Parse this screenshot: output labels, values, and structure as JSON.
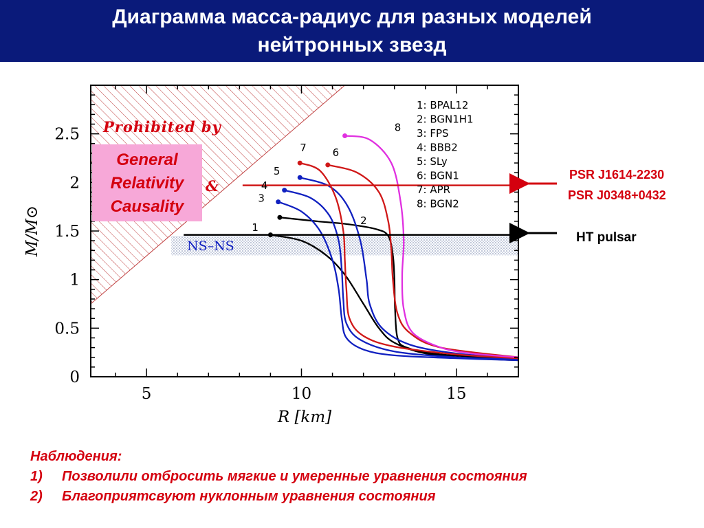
{
  "header": {
    "title_line1": "Диаграмма масса-радиус для разных моделей",
    "title_line2": "нейтронных звезд",
    "bg_color": "#0a1a7a"
  },
  "annotations": {
    "prohibited": "Prohibited by",
    "gr_line1": "General",
    "gr_line2": "Relativity",
    "gr_amp": "&",
    "gr_line3": "Causality",
    "ns_ns": "NS–NS",
    "psr1": "PSR J1614-2230",
    "psr2": "PSR J0348+0432",
    "ht_pulsar": "HT pulsar"
  },
  "observations": {
    "heading": "Наблюдения:",
    "items": [
      {
        "num": "1)",
        "text": "Позволили отбросить мягкие и умеренные уравнения состояния"
      },
      {
        "num": "2)",
        "text": "Благоприятсвуют нуклонным уравнения состояния"
      }
    ]
  },
  "chart_data": {
    "type": "line",
    "xlabel": "R  [km]",
    "ylabel": "M/M⊙",
    "xlim": [
      3.2,
      17
    ],
    "ylim": [
      0,
      3.0
    ],
    "xticks": [
      5,
      10,
      15
    ],
    "yticks": [
      0,
      0.5,
      1,
      1.5,
      2,
      2.5
    ],
    "ytick_labels": [
      "0",
      "0.5",
      "1",
      "1.5",
      "2",
      "2.5"
    ],
    "grid": false,
    "legend_position": "top-right",
    "prohibited_boundary": [
      [
        3.2,
        0.75
      ],
      [
        11.4,
        3.0
      ]
    ],
    "ns_ns_band": [
      1.25,
      1.45
    ],
    "psr_mass": 1.97,
    "ht_pulsar_mass": 1.46,
    "series": [
      {
        "name": "BPAL12",
        "label": "1",
        "color": "#000000",
        "max": [
          9.0,
          1.46
        ],
        "points": [
          [
            9.0,
            1.46
          ],
          [
            10.0,
            1.4
          ],
          [
            10.8,
            1.25
          ],
          [
            11.4,
            1.05
          ],
          [
            12.0,
            0.75
          ],
          [
            12.5,
            0.5
          ],
          [
            13.0,
            0.35
          ],
          [
            14.0,
            0.24
          ],
          [
            15.5,
            0.19
          ],
          [
            17.0,
            0.17
          ]
        ]
      },
      {
        "name": "BGN1H1",
        "label": "2",
        "color": "#000000",
        "max": [
          9.3,
          1.64
        ],
        "points": [
          [
            9.3,
            1.64
          ],
          [
            10.5,
            1.6
          ],
          [
            11.5,
            1.57
          ],
          [
            12.4,
            1.52
          ],
          [
            12.8,
            1.45
          ],
          [
            12.95,
            1.25
          ],
          [
            13.0,
            1.0
          ],
          [
            13.02,
            0.7
          ],
          [
            13.1,
            0.4
          ],
          [
            13.4,
            0.3
          ],
          [
            14.5,
            0.23
          ],
          [
            17.0,
            0.18
          ]
        ]
      },
      {
        "name": "FPS",
        "label": "3",
        "color": "#1020c0",
        "max": [
          9.25,
          1.8
        ],
        "points": [
          [
            9.25,
            1.8
          ],
          [
            10.0,
            1.7
          ],
          [
            10.6,
            1.5
          ],
          [
            11.0,
            1.2
          ],
          [
            11.2,
            0.9
          ],
          [
            11.3,
            0.6
          ],
          [
            11.45,
            0.4
          ],
          [
            12.0,
            0.28
          ],
          [
            13.0,
            0.22
          ],
          [
            15.0,
            0.19
          ],
          [
            17.0,
            0.17
          ]
        ]
      },
      {
        "name": "BBB2",
        "label": "4",
        "color": "#1020c0",
        "max": [
          9.45,
          1.92
        ],
        "points": [
          [
            9.45,
            1.92
          ],
          [
            10.3,
            1.84
          ],
          [
            10.9,
            1.66
          ],
          [
            11.2,
            1.4
          ],
          [
            11.3,
            1.1
          ],
          [
            11.35,
            0.8
          ],
          [
            11.45,
            0.55
          ],
          [
            11.9,
            0.38
          ],
          [
            13.0,
            0.26
          ],
          [
            15.0,
            0.2
          ],
          [
            17.0,
            0.18
          ]
        ]
      },
      {
        "name": "SLy",
        "label": "5",
        "color": "#1020c0",
        "max": [
          9.95,
          2.05
        ],
        "points": [
          [
            9.95,
            2.05
          ],
          [
            10.9,
            1.96
          ],
          [
            11.5,
            1.75
          ],
          [
            11.9,
            1.4
          ],
          [
            12.1,
            1.0
          ],
          [
            12.2,
            0.75
          ],
          [
            12.6,
            0.5
          ],
          [
            13.5,
            0.33
          ],
          [
            15.0,
            0.24
          ],
          [
            17.0,
            0.19
          ]
        ]
      },
      {
        "name": "BGN1",
        "label": "6",
        "color": "#d01818",
        "max": [
          10.85,
          2.18
        ],
        "points": [
          [
            10.85,
            2.18
          ],
          [
            11.8,
            2.1
          ],
          [
            12.5,
            1.9
          ],
          [
            12.8,
            1.6
          ],
          [
            12.9,
            1.3
          ],
          [
            12.95,
            1.0
          ],
          [
            13.1,
            0.65
          ],
          [
            13.5,
            0.45
          ],
          [
            14.5,
            0.3
          ],
          [
            17.0,
            0.2
          ]
        ]
      },
      {
        "name": "APR",
        "label": "7",
        "color": "#d01818",
        "max": [
          9.95,
          2.2
        ],
        "points": [
          [
            9.95,
            2.2
          ],
          [
            10.6,
            2.12
          ],
          [
            11.1,
            1.85
          ],
          [
            11.35,
            1.5
          ],
          [
            11.4,
            1.2
          ],
          [
            11.45,
            0.9
          ],
          [
            11.55,
            0.6
          ],
          [
            12.0,
            0.42
          ],
          [
            13.0,
            0.31
          ],
          [
            15.0,
            0.23
          ],
          [
            17.0,
            0.19
          ]
        ]
      },
      {
        "name": "BGN2",
        "label": "8",
        "color": "#e030e0",
        "max": [
          11.4,
          2.48
        ],
        "points": [
          [
            11.4,
            2.48
          ],
          [
            12.2,
            2.44
          ],
          [
            12.9,
            2.2
          ],
          [
            13.2,
            1.8
          ],
          [
            13.3,
            1.4
          ],
          [
            13.25,
            1.05
          ],
          [
            13.3,
            0.7
          ],
          [
            13.6,
            0.45
          ],
          [
            14.5,
            0.3
          ],
          [
            15.5,
            0.24
          ],
          [
            17.0,
            0.2
          ]
        ]
      }
    ],
    "label_positions": {
      "1": [
        8.4,
        1.5
      ],
      "2": [
        11.9,
        1.57
      ],
      "3": [
        8.6,
        1.8
      ],
      "4": [
        8.7,
        1.93
      ],
      "5": [
        9.1,
        2.08
      ],
      "6": [
        11.0,
        2.27
      ],
      "7": [
        9.95,
        2.32
      ],
      "8": [
        13.0,
        2.53
      ]
    }
  },
  "colors": {
    "accent_red": "#d4000f",
    "gr_box_bg": "#f7a8d8",
    "hatch": "#c04040",
    "band": "#9aa8c8"
  }
}
